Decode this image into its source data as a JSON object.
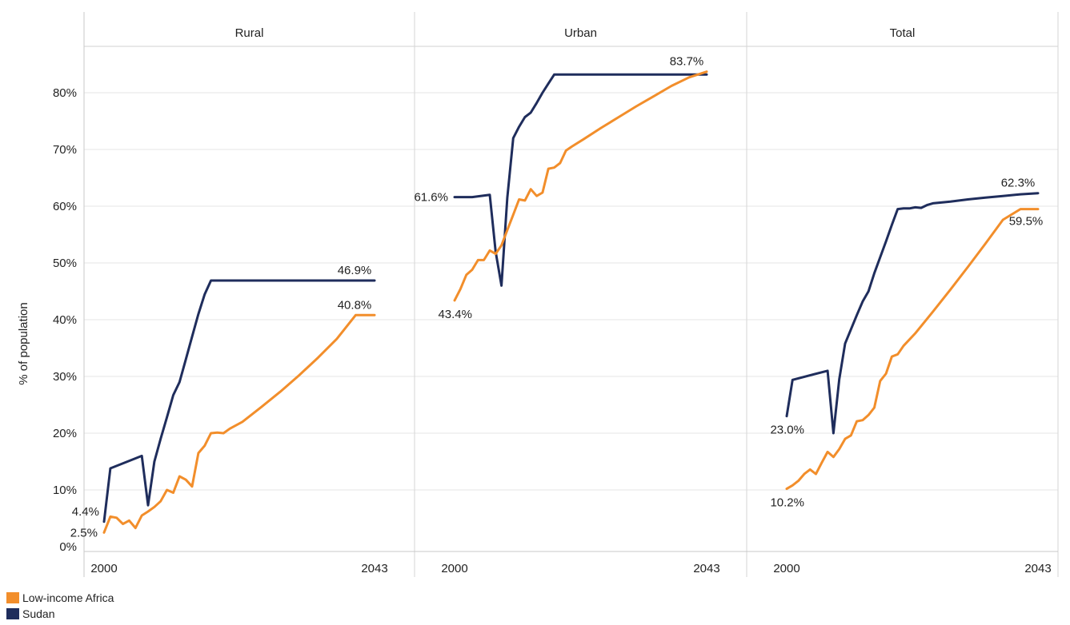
{
  "chart_data": {
    "type": "line",
    "ylabel": "% of population",
    "yticks": [
      "0%",
      "10%",
      "20%",
      "30%",
      "40%",
      "50%",
      "60%",
      "70%",
      "80%"
    ],
    "ylim": [
      0,
      85
    ],
    "xlim": [
      2000,
      2043
    ],
    "xtick_labels": [
      "2000",
      "2043"
    ],
    "grid": true,
    "legend_position": "bottom-left",
    "colors": {
      "low_income_africa": "#f28e2b",
      "sudan": "#1f2d5c"
    },
    "legend": [
      {
        "name": "Low-income Africa",
        "color": "#f28e2b"
      },
      {
        "name": "Sudan",
        "color": "#1f2d5c"
      }
    ],
    "panels": [
      {
        "title": "Rural",
        "series": [
          {
            "name": "Sudan",
            "color": "#1f2d5c",
            "x": [
              2000,
              2001,
              2006,
              2007,
              2008,
              2009,
              2010,
              2011,
              2012,
              2013,
              2014,
              2015,
              2016,
              2017,
              2018,
              2020,
              2025,
              2030,
              2035,
              2040,
              2043
            ],
            "y": [
              4.4,
              13.8,
              16.0,
              7.3,
              15.0,
              19.0,
              22.8,
              26.7,
              29.0,
              33.0,
              37.0,
              41.0,
              44.5,
              46.9,
              46.9,
              46.9,
              46.9,
              46.9,
              46.9,
              46.9,
              46.9
            ]
          },
          {
            "name": "Low-income Africa",
            "color": "#f28e2b",
            "x": [
              2000,
              2001,
              2002,
              2003,
              2004,
              2005,
              2006,
              2007,
              2008,
              2009,
              2010,
              2011,
              2012,
              2013,
              2014,
              2015,
              2016,
              2017,
              2018,
              2019,
              2020,
              2022,
              2025,
              2028,
              2031,
              2034,
              2037,
              2040,
              2043
            ],
            "y": [
              2.5,
              5.3,
              5.1,
              4.0,
              4.6,
              3.3,
              5.5,
              6.2,
              7.0,
              8.0,
              10.0,
              9.5,
              12.4,
              11.8,
              10.6,
              16.5,
              17.8,
              20.0,
              20.1,
              20.0,
              20.8,
              22.0,
              24.6,
              27.3,
              30.2,
              33.3,
              36.6,
              40.8,
              40.8
            ]
          }
        ],
        "labels": [
          {
            "text": "4.4%",
            "x": 2000,
            "y": 4.4,
            "pos": "upper-left"
          },
          {
            "text": "2.5%",
            "x": 2000,
            "y": 2.5,
            "pos": "left"
          },
          {
            "text": "46.9%",
            "x": 2043,
            "y": 46.9,
            "pos": "above"
          },
          {
            "text": "40.8%",
            "x": 2043,
            "y": 40.8,
            "pos": "above"
          }
        ]
      },
      {
        "title": "Urban",
        "series": [
          {
            "name": "Sudan",
            "color": "#1f2d5c",
            "x": [
              2000,
              2003,
              2006,
              2007,
              2008,
              2009,
              2010,
              2011,
              2012,
              2013,
              2014,
              2015,
              2016,
              2017,
              2018,
              2020,
              2025,
              2030,
              2035,
              2040,
              2043
            ],
            "y": [
              61.6,
              61.6,
              62.0,
              52.0,
              46.0,
              61.5,
              72.0,
              74.0,
              75.7,
              76.5,
              78.2,
              80.0,
              81.6,
              83.2,
              83.2,
              83.2,
              83.2,
              83.2,
              83.2,
              83.2,
              83.2
            ]
          },
          {
            "name": "Low-income Africa",
            "color": "#f28e2b",
            "x": [
              2000,
              2001,
              2002,
              2003,
              2004,
              2005,
              2006,
              2007,
              2008,
              2009,
              2010,
              2011,
              2012,
              2013,
              2014,
              2015,
              2016,
              2017,
              2018,
              2019,
              2020,
              2022,
              2025,
              2028,
              2031,
              2034,
              2037,
              2040,
              2043
            ],
            "y": [
              43.4,
              45.4,
              47.9,
              48.8,
              50.5,
              50.5,
              52.2,
              51.6,
              53.1,
              55.8,
              58.5,
              61.2,
              61.0,
              63.0,
              61.8,
              62.4,
              66.6,
              66.8,
              67.6,
              69.8,
              70.5,
              71.8,
              73.8,
              75.7,
              77.6,
              79.4,
              81.2,
              82.7,
              83.7
            ]
          }
        ],
        "labels": [
          {
            "text": "61.6%",
            "x": 2000,
            "y": 61.6,
            "pos": "left"
          },
          {
            "text": "43.4%",
            "x": 2000,
            "y": 43.4,
            "pos": "below-left"
          },
          {
            "text": "83.7%",
            "x": 2043,
            "y": 83.7,
            "pos": "above"
          }
        ]
      },
      {
        "title": "Total",
        "series": [
          {
            "name": "Sudan",
            "color": "#1f2d5c",
            "x": [
              2000,
              2001,
              2007,
              2008,
              2009,
              2010,
              2011,
              2012,
              2013,
              2014,
              2015,
              2016,
              2017,
              2018,
              2019,
              2020,
              2021,
              2022,
              2023,
              2024,
              2025,
              2028,
              2031,
              2034,
              2037,
              2040,
              2043
            ],
            "y": [
              23.0,
              29.4,
              31.0,
              20.0,
              29.5,
              35.8,
              38.3,
              40.8,
              43.2,
              45.0,
              48.2,
              51.0,
              53.8,
              56.7,
              59.5,
              59.6,
              59.6,
              59.8,
              59.7,
              60.2,
              60.5,
              60.8,
              61.2,
              61.5,
              61.8,
              62.1,
              62.3
            ]
          },
          {
            "name": "Low-income Africa",
            "color": "#f28e2b",
            "x": [
              2000,
              2001,
              2002,
              2003,
              2004,
              2005,
              2006,
              2007,
              2008,
              2009,
              2010,
              2011,
              2012,
              2013,
              2014,
              2015,
              2016,
              2017,
              2018,
              2019,
              2020,
              2022,
              2025,
              2028,
              2031,
              2034,
              2037,
              2040,
              2043
            ],
            "y": [
              10.2,
              10.8,
              11.6,
              12.8,
              13.6,
              12.8,
              14.8,
              16.7,
              15.8,
              17.2,
              19.0,
              19.6,
              22.1,
              22.3,
              23.2,
              24.5,
              29.2,
              30.5,
              33.5,
              33.9,
              35.4,
              37.6,
              41.4,
              45.3,
              49.3,
              53.4,
              57.6,
              59.5,
              59.5
            ]
          }
        ],
        "labels": [
          {
            "text": "23.0%",
            "x": 2000,
            "y": 23.0,
            "pos": "below-left"
          },
          {
            "text": "10.2%",
            "x": 2000,
            "y": 10.2,
            "pos": "below-left"
          },
          {
            "text": "62.3%",
            "x": 2043,
            "y": 62.3,
            "pos": "above"
          },
          {
            "text": "59.5%",
            "x": 2043,
            "y": 59.5,
            "pos": "below"
          }
        ]
      }
    ]
  }
}
